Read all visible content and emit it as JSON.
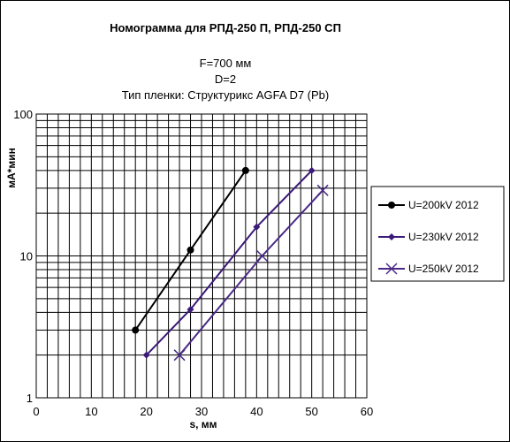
{
  "chart_data": {
    "type": "line",
    "title": "Номограмма для РПД-250 П, РПД-250 СП",
    "subtitle_lines": [
      "F=700 мм",
      "D=2",
      "Тип пленки: Структурикс AGFA D7 (Pb)"
    ],
    "xlabel": "s, мм",
    "ylabel": "мА*мин",
    "xlim": [
      0,
      60
    ],
    "ylim": [
      1,
      100
    ],
    "yscale": "log",
    "grid": true,
    "legend_position": "right",
    "x_ticks": [
      "0",
      "10",
      "20",
      "30",
      "40",
      "50",
      "60"
    ],
    "y_ticks": [
      "1",
      "10",
      "100"
    ],
    "series": [
      {
        "name": "U=200kV 2012",
        "color": "#000000",
        "marker": "circle",
        "x": [
          18,
          28,
          38
        ],
        "y": [
          3,
          11,
          40
        ]
      },
      {
        "name": "U=230kV 2012",
        "color": "#3b1a78",
        "marker": "diamond",
        "x": [
          20,
          28,
          40,
          50
        ],
        "y": [
          2,
          4.2,
          16,
          40
        ]
      },
      {
        "name": "U=250kV 2012",
        "color": "#4a2a86",
        "marker": "x",
        "x": [
          26,
          41,
          52
        ],
        "y": [
          2,
          10,
          29
        ]
      }
    ]
  }
}
